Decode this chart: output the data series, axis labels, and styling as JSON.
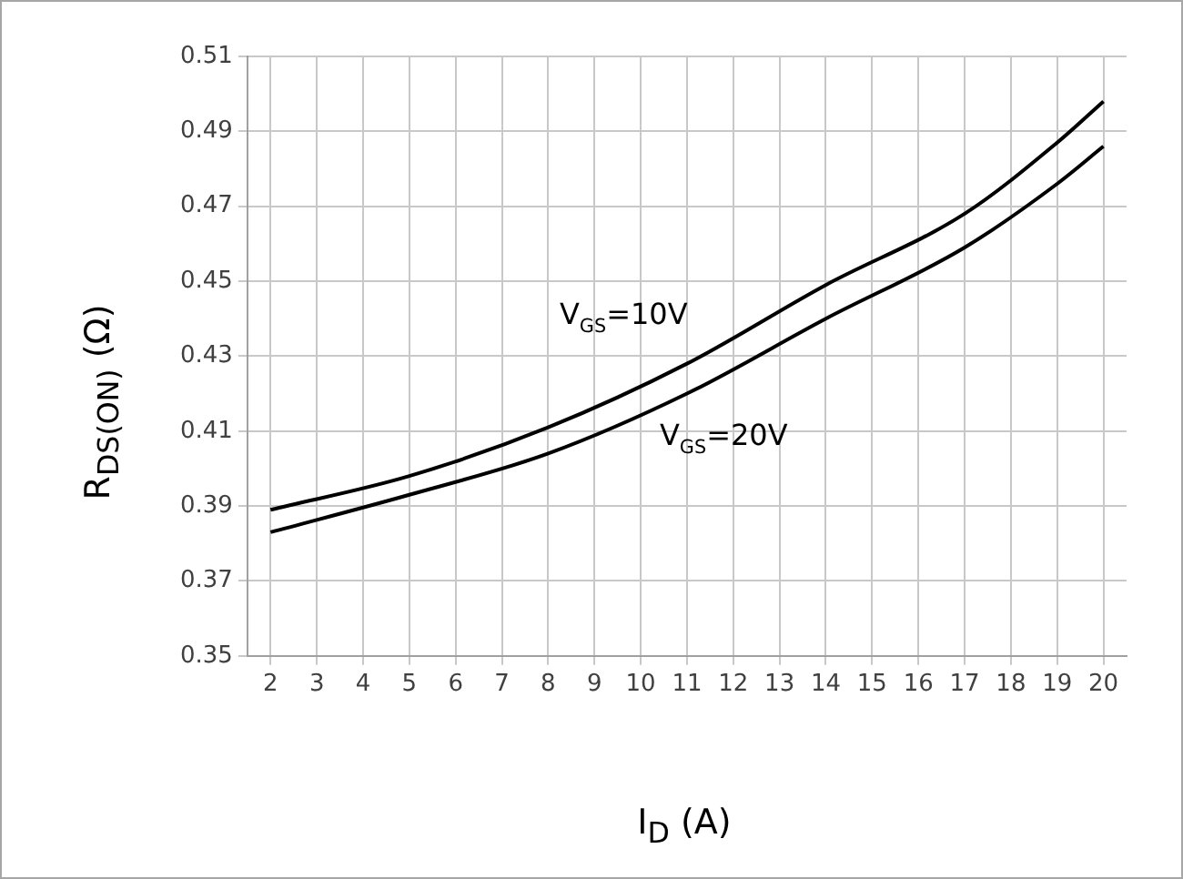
{
  "chart_data": {
    "type": "line",
    "xlabel": "I$_{D}$ (A)",
    "ylabel": "R$_{DS(ON)}$ (Ω)",
    "x": [
      2,
      5,
      8,
      11,
      14,
      17,
      19,
      20
    ],
    "series": [
      {
        "name": "V$_{GS}$=10V",
        "color": "#000000",
        "values": [
          0.389,
          0.398,
          0.411,
          0.428,
          0.449,
          0.468,
          0.487,
          0.498
        ]
      },
      {
        "name": "V$_{GS}$=20V",
        "color": "#000000",
        "values": [
          0.383,
          0.393,
          0.404,
          0.42,
          0.44,
          0.459,
          0.476,
          0.486
        ]
      }
    ],
    "xlim": [
      1.5,
      20.5
    ],
    "xticks": [
      2,
      3,
      4,
      5,
      6,
      7,
      8,
      9,
      10,
      11,
      12,
      13,
      14,
      15,
      16,
      17,
      18,
      19,
      20
    ],
    "ylim": [
      0.35,
      0.51
    ],
    "yticks": [
      0.35,
      0.37,
      0.39,
      0.41,
      0.43,
      0.45,
      0.47,
      0.49,
      0.51
    ],
    "grid": true,
    "legend": false,
    "marker": "none",
    "line_style": "solid"
  }
}
